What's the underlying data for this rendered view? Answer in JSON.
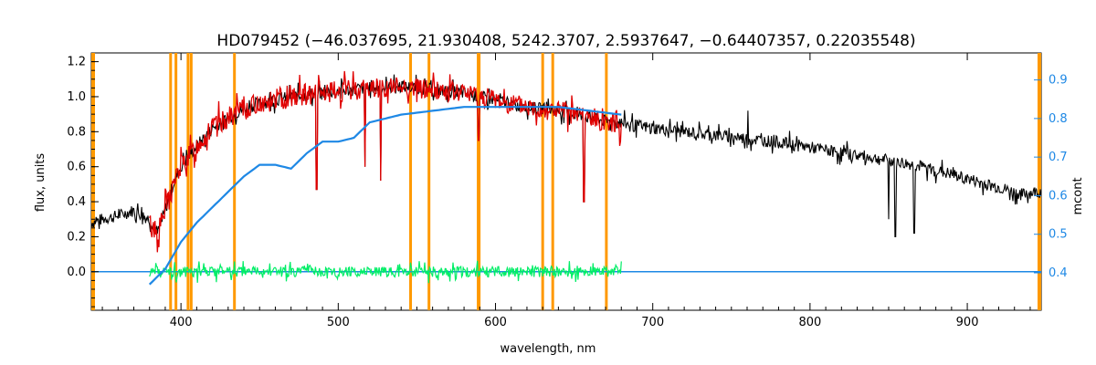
{
  "chart_data": {
    "type": "line",
    "title": "HD079452   (−46.037695, 21.930408, 5242.3707, 2.5937647, −0.64407357, 0.22035548)",
    "xlabel": "wavelength, nm",
    "ylabel": "flux, units",
    "y2label": "mcont",
    "xlim": [
      343,
      947
    ],
    "ylim": [
      -0.22,
      1.25
    ],
    "y2lim": [
      0.303,
      0.97
    ],
    "x_ticks": [
      400,
      500,
      600,
      700,
      800,
      900
    ],
    "y_ticks": [
      0.0,
      0.2,
      0.4,
      0.6,
      0.8,
      1.0,
      1.2
    ],
    "y2_ticks": [
      0.4,
      0.5,
      0.6,
      0.7,
      0.8,
      0.9
    ],
    "y_tick_labels": [
      "0.0",
      "0.2",
      "0.4",
      "0.6",
      "0.8",
      "1.0",
      "1.2"
    ],
    "y2_tick_labels": [
      "0.4",
      "0.5",
      "0.6",
      "0.7",
      "0.8",
      "0.9"
    ],
    "grid": false,
    "colors": {
      "observed": "#000000",
      "model": "#e00000",
      "residual": "#00ee66",
      "continuum": "#1e88e5",
      "masks": "#ff9900",
      "right_axis": "#1e88e5"
    },
    "mask_lines_x": [
      393.4,
      396.8,
      404.5,
      406.5,
      434.0,
      546.0,
      557.7,
      589.0,
      589.6,
      630.0,
      636.4,
      670.5
    ],
    "series": [
      {
        "role": "observed",
        "x": [
          343,
          350,
          360,
          370,
          380,
          385,
          390,
          395,
          400,
          410,
          420,
          430,
          440,
          450,
          460,
          470,
          480,
          490,
          500,
          510,
          520,
          530,
          540,
          550,
          560,
          570,
          580,
          590,
          600,
          610,
          620,
          630,
          640,
          650,
          660,
          670,
          680,
          700,
          720,
          740,
          760,
          780,
          800,
          820,
          840,
          860,
          880,
          900,
          920,
          935,
          947
        ],
        "y": [
          0.28,
          0.3,
          0.32,
          0.35,
          0.3,
          0.22,
          0.35,
          0.5,
          0.6,
          0.72,
          0.82,
          0.88,
          0.93,
          0.96,
          0.98,
          1.0,
          1.01,
          1.02,
          1.03,
          1.04,
          1.05,
          1.05,
          1.06,
          1.05,
          1.04,
          1.03,
          1.02,
          1.0,
          0.98,
          0.96,
          0.94,
          0.93,
          0.92,
          0.9,
          0.88,
          0.86,
          0.85,
          0.82,
          0.8,
          0.78,
          0.76,
          0.74,
          0.71,
          0.68,
          0.65,
          0.62,
          0.58,
          0.53,
          0.48,
          0.44,
          0.46
        ]
      },
      {
        "role": "model",
        "x": [
          380,
          385,
          390,
          395,
          400,
          410,
          420,
          430,
          440,
          450,
          460,
          470,
          480,
          490,
          500,
          510,
          520,
          530,
          540,
          550,
          560,
          570,
          580,
          590,
          600,
          610,
          620,
          630,
          640,
          650,
          660,
          670,
          680
        ],
        "y": [
          0.28,
          0.22,
          0.35,
          0.5,
          0.6,
          0.72,
          0.82,
          0.88,
          0.93,
          0.96,
          0.98,
          1.0,
          1.01,
          1.02,
          1.03,
          1.04,
          1.05,
          1.05,
          1.06,
          1.05,
          1.04,
          1.03,
          1.02,
          1.0,
          0.98,
          0.96,
          0.94,
          0.93,
          0.92,
          0.9,
          0.88,
          0.86,
          0.85
        ]
      },
      {
        "role": "residual",
        "x": [
          380,
          680
        ],
        "y": [
          0.0,
          0.0
        ]
      },
      {
        "role": "continuum",
        "axis": "right",
        "x": [
          380,
          390,
          400,
          410,
          420,
          430,
          440,
          450,
          460,
          470,
          480,
          490,
          500,
          510,
          520,
          540,
          560,
          580,
          600,
          620,
          640,
          660,
          680
        ],
        "y": [
          0.37,
          0.41,
          0.48,
          0.53,
          0.57,
          0.61,
          0.65,
          0.68,
          0.68,
          0.67,
          0.71,
          0.74,
          0.74,
          0.75,
          0.79,
          0.81,
          0.82,
          0.83,
          0.83,
          0.83,
          0.83,
          0.82,
          0.81
        ]
      },
      {
        "role": "baseline",
        "x": [
          343,
          947
        ],
        "y": [
          0.0,
          0.0
        ]
      }
    ],
    "absorption_dips": [
      {
        "x": 486.1,
        "y": 0.47
      },
      {
        "x": 517.0,
        "y": 0.6
      },
      {
        "x": 527.0,
        "y": 0.52
      },
      {
        "x": 589.3,
        "y": 0.75
      },
      {
        "x": 656.3,
        "y": 0.4
      },
      {
        "x": 760.5,
        "y": 0.92
      },
      {
        "x": 850.0,
        "y": 0.3
      },
      {
        "x": 854.2,
        "y": 0.2
      },
      {
        "x": 866.2,
        "y": 0.22
      }
    ]
  }
}
